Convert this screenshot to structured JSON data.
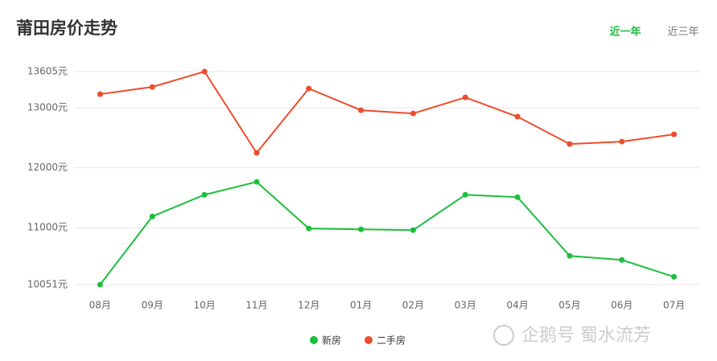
{
  "chart_data": {
    "type": "line",
    "title": "莆田房价走势",
    "categories": [
      "08月",
      "09月",
      "10月",
      "11月",
      "12月",
      "01月",
      "02月",
      "03月",
      "04月",
      "05月",
      "06月",
      "07月"
    ],
    "series": [
      {
        "name": "新房",
        "color": "#1cbf3c",
        "values": [
          10051,
          11188,
          11550,
          11765,
          10987,
          10973,
          10960,
          11550,
          11510,
          10530,
          10463,
          10181
        ]
      },
      {
        "name": "二手房",
        "color": "#ee4d2d",
        "values": [
          13228,
          13349,
          13605,
          12248,
          13322,
          12960,
          12906,
          13174,
          12852,
          12396,
          12436,
          12557
        ]
      }
    ],
    "ylim": [
      10051,
      13605
    ],
    "yticks": [
      {
        "value": 10051,
        "label": "10051元"
      },
      {
        "value": 11000,
        "label": "11000元"
      },
      {
        "value": 12000,
        "label": "12000元"
      },
      {
        "value": 13000,
        "label": "13000元"
      },
      {
        "value": 13605,
        "label": "13605元"
      }
    ],
    "grid": true,
    "legend": "bottom"
  },
  "controls": {
    "options": [
      "近一年",
      "近三年"
    ],
    "active": 0
  },
  "watermark": "企鹅号 蜀水流芳"
}
